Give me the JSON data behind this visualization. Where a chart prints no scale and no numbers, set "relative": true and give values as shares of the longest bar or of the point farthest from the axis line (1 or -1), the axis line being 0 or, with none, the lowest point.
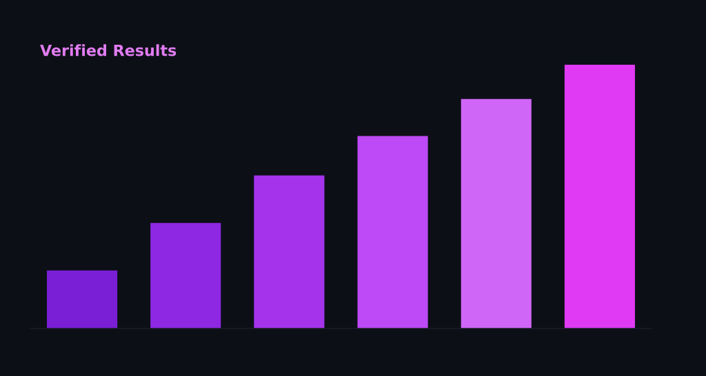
{
  "chart_data": {
    "type": "bar",
    "title": "Verified Results",
    "relative": true,
    "categories": [
      null,
      null,
      null,
      null,
      null,
      null
    ],
    "values": [
      0.22,
      0.4,
      0.58,
      0.73,
      0.87,
      1.0
    ],
    "colors": [
      "#7a1fd6",
      "#8e28e3",
      "#a533ec",
      "#bd4af6",
      "#d066f8",
      "#e03af5"
    ],
    "grid": false
  }
}
